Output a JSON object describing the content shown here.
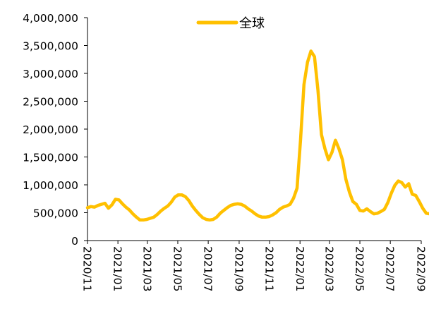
{
  "chart_data": {
    "type": "line",
    "title": "",
    "xlabel": "",
    "ylabel": "",
    "ylim": [
      0,
      4000000
    ],
    "yticks": [
      0,
      500000,
      1000000,
      1500000,
      2000000,
      2500000,
      3000000,
      3500000,
      4000000
    ],
    "ytick_labels": [
      "0",
      "500,000",
      "1,000,000",
      "1,500,000",
      "2,000,000",
      "2,500,000",
      "3,000,000",
      "3,500,000",
      "4,000,000"
    ],
    "xticks": [
      "2020/11",
      "2021/01",
      "2021/03",
      "2021/05",
      "2021/07",
      "2021/09",
      "2021/11",
      "2022/01",
      "2022/03",
      "2022/05",
      "2022/07",
      "2022/09"
    ],
    "grid": false,
    "legend": {
      "placement": "top-center"
    },
    "series": [
      {
        "name": "全球",
        "color": "#FFC000",
        "points": [
          [
            "2020-11-01",
            590000
          ],
          [
            "2020-11-08",
            610000
          ],
          [
            "2020-11-15",
            600000
          ],
          [
            "2020-11-22",
            630000
          ],
          [
            "2020-11-29",
            650000
          ],
          [
            "2020-12-06",
            670000
          ],
          [
            "2020-12-13",
            580000
          ],
          [
            "2020-12-20",
            640000
          ],
          [
            "2020-12-27",
            740000
          ],
          [
            "2021-01-03",
            730000
          ],
          [
            "2021-01-10",
            660000
          ],
          [
            "2021-01-17",
            600000
          ],
          [
            "2021-01-24",
            550000
          ],
          [
            "2021-01-31",
            480000
          ],
          [
            "2021-02-07",
            420000
          ],
          [
            "2021-02-14",
            370000
          ],
          [
            "2021-02-21",
            370000
          ],
          [
            "2021-02-28",
            380000
          ],
          [
            "2021-03-07",
            400000
          ],
          [
            "2021-03-14",
            420000
          ],
          [
            "2021-03-21",
            470000
          ],
          [
            "2021-03-28",
            530000
          ],
          [
            "2021-04-04",
            580000
          ],
          [
            "2021-04-11",
            620000
          ],
          [
            "2021-04-18",
            690000
          ],
          [
            "2021-04-25",
            780000
          ],
          [
            "2021-05-02",
            820000
          ],
          [
            "2021-05-09",
            820000
          ],
          [
            "2021-05-16",
            790000
          ],
          [
            "2021-05-23",
            720000
          ],
          [
            "2021-05-30",
            620000
          ],
          [
            "2021-06-06",
            540000
          ],
          [
            "2021-06-13",
            470000
          ],
          [
            "2021-06-20",
            410000
          ],
          [
            "2021-06-27",
            380000
          ],
          [
            "2021-07-04",
            370000
          ],
          [
            "2021-07-11",
            380000
          ],
          [
            "2021-07-18",
            420000
          ],
          [
            "2021-07-25",
            490000
          ],
          [
            "2021-08-01",
            540000
          ],
          [
            "2021-08-08",
            590000
          ],
          [
            "2021-08-15",
            630000
          ],
          [
            "2021-08-22",
            650000
          ],
          [
            "2021-08-29",
            660000
          ],
          [
            "2021-09-05",
            650000
          ],
          [
            "2021-09-12",
            620000
          ],
          [
            "2021-09-19",
            570000
          ],
          [
            "2021-09-26",
            530000
          ],
          [
            "2021-10-03",
            480000
          ],
          [
            "2021-10-10",
            440000
          ],
          [
            "2021-10-17",
            420000
          ],
          [
            "2021-10-24",
            420000
          ],
          [
            "2021-10-31",
            430000
          ],
          [
            "2021-11-07",
            460000
          ],
          [
            "2021-11-14",
            500000
          ],
          [
            "2021-11-21",
            560000
          ],
          [
            "2021-11-28",
            600000
          ],
          [
            "2021-12-05",
            620000
          ],
          [
            "2021-12-12",
            650000
          ],
          [
            "2021-12-19",
            760000
          ],
          [
            "2021-12-26",
            940000
          ],
          [
            "2022-01-02",
            1800000
          ],
          [
            "2022-01-09",
            2800000
          ],
          [
            "2022-01-16",
            3200000
          ],
          [
            "2022-01-23",
            3400000
          ],
          [
            "2022-01-30",
            3300000
          ],
          [
            "2022-02-06",
            2700000
          ],
          [
            "2022-02-13",
            1900000
          ],
          [
            "2022-02-20",
            1650000
          ],
          [
            "2022-02-27",
            1450000
          ],
          [
            "2022-03-06",
            1580000
          ],
          [
            "2022-03-13",
            1800000
          ],
          [
            "2022-03-20",
            1650000
          ],
          [
            "2022-03-27",
            1450000
          ],
          [
            "2022-04-03",
            1100000
          ],
          [
            "2022-04-10",
            870000
          ],
          [
            "2022-04-17",
            700000
          ],
          [
            "2022-04-24",
            650000
          ],
          [
            "2022-05-01",
            540000
          ],
          [
            "2022-05-08",
            530000
          ],
          [
            "2022-05-15",
            570000
          ],
          [
            "2022-05-22",
            520000
          ],
          [
            "2022-05-29",
            480000
          ],
          [
            "2022-06-05",
            490000
          ],
          [
            "2022-06-12",
            520000
          ],
          [
            "2022-06-19",
            560000
          ],
          [
            "2022-06-26",
            680000
          ],
          [
            "2022-07-03",
            850000
          ],
          [
            "2022-07-10",
            990000
          ],
          [
            "2022-07-17",
            1070000
          ],
          [
            "2022-07-24",
            1040000
          ],
          [
            "2022-07-31",
            960000
          ],
          [
            "2022-08-07",
            1020000
          ],
          [
            "2022-08-14",
            830000
          ],
          [
            "2022-08-21",
            810000
          ],
          [
            "2022-08-28",
            700000
          ],
          [
            "2022-09-04",
            580000
          ],
          [
            "2022-09-11",
            490000
          ],
          [
            "2022-09-18",
            480000
          ]
        ]
      }
    ]
  }
}
